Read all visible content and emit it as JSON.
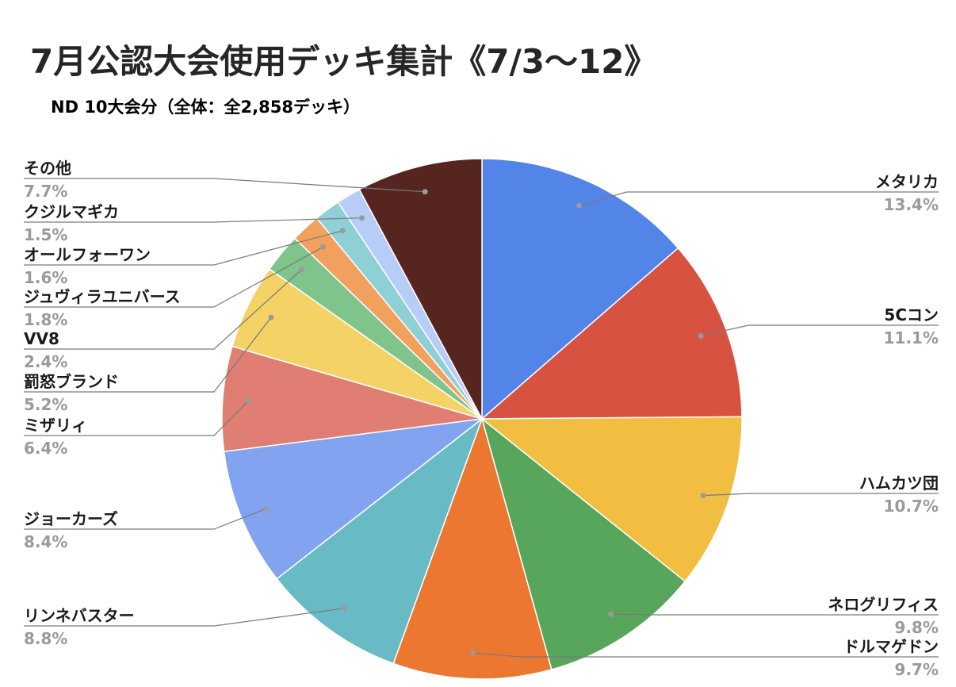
{
  "chart_data": {
    "type": "pie",
    "title": "7月公認大会使用デッキ集計《7/3〜12》",
    "subtitle": "ND 10大会分（全体：全2,858デッキ）",
    "slices": [
      {
        "label": "メタリカ",
        "value": 13.4,
        "value_label": "13.4%",
        "color": "#5385E9"
      },
      {
        "label": "5Cコン",
        "value": 11.1,
        "value_label": "11.1%",
        "color": "#D85241"
      },
      {
        "label": "ハムカツ団",
        "value": 10.7,
        "value_label": "10.7%",
        "color": "#F1BE42"
      },
      {
        "label": "ネログリフィス",
        "value": 9.8,
        "value_label": "9.8%",
        "color": "#58A65C"
      },
      {
        "label": "ドルマゲドン",
        "value": 9.7,
        "value_label": "9.7%",
        "color": "#EC7731"
      },
      {
        "label": "リンネバスター",
        "value": 8.8,
        "value_label": "8.8%",
        "color": "#68BAC4"
      },
      {
        "label": "ジョーカーズ",
        "value": 8.4,
        "value_label": "8.4%",
        "color": "#82A4F0"
      },
      {
        "label": "ミザリィ",
        "value": 6.4,
        "value_label": "6.4%",
        "color": "#E07E73"
      },
      {
        "label": "罰怒ブランド",
        "value": 5.2,
        "value_label": "5.2%",
        "color": "#F5D266"
      },
      {
        "label": "VV8",
        "value": 2.4,
        "value_label": "2.4%",
        "color": "#7FC48A"
      },
      {
        "label": "ジュヴィラユニバース",
        "value": 1.8,
        "value_label": "1.8%",
        "color": "#F2A05E"
      },
      {
        "label": "オールフォーワン",
        "value": 1.6,
        "value_label": "1.6%",
        "color": "#8FD0D6"
      },
      {
        "label": "クジルマギカ",
        "value": 1.5,
        "value_label": "1.5%",
        "color": "#B8CCF8"
      },
      {
        "label": "その他",
        "value": 7.7,
        "value_label": "7.7%",
        "color": "#562520"
      }
    ],
    "start_angle": "12 o'clock",
    "direction": "clockwise",
    "legend": "none"
  }
}
